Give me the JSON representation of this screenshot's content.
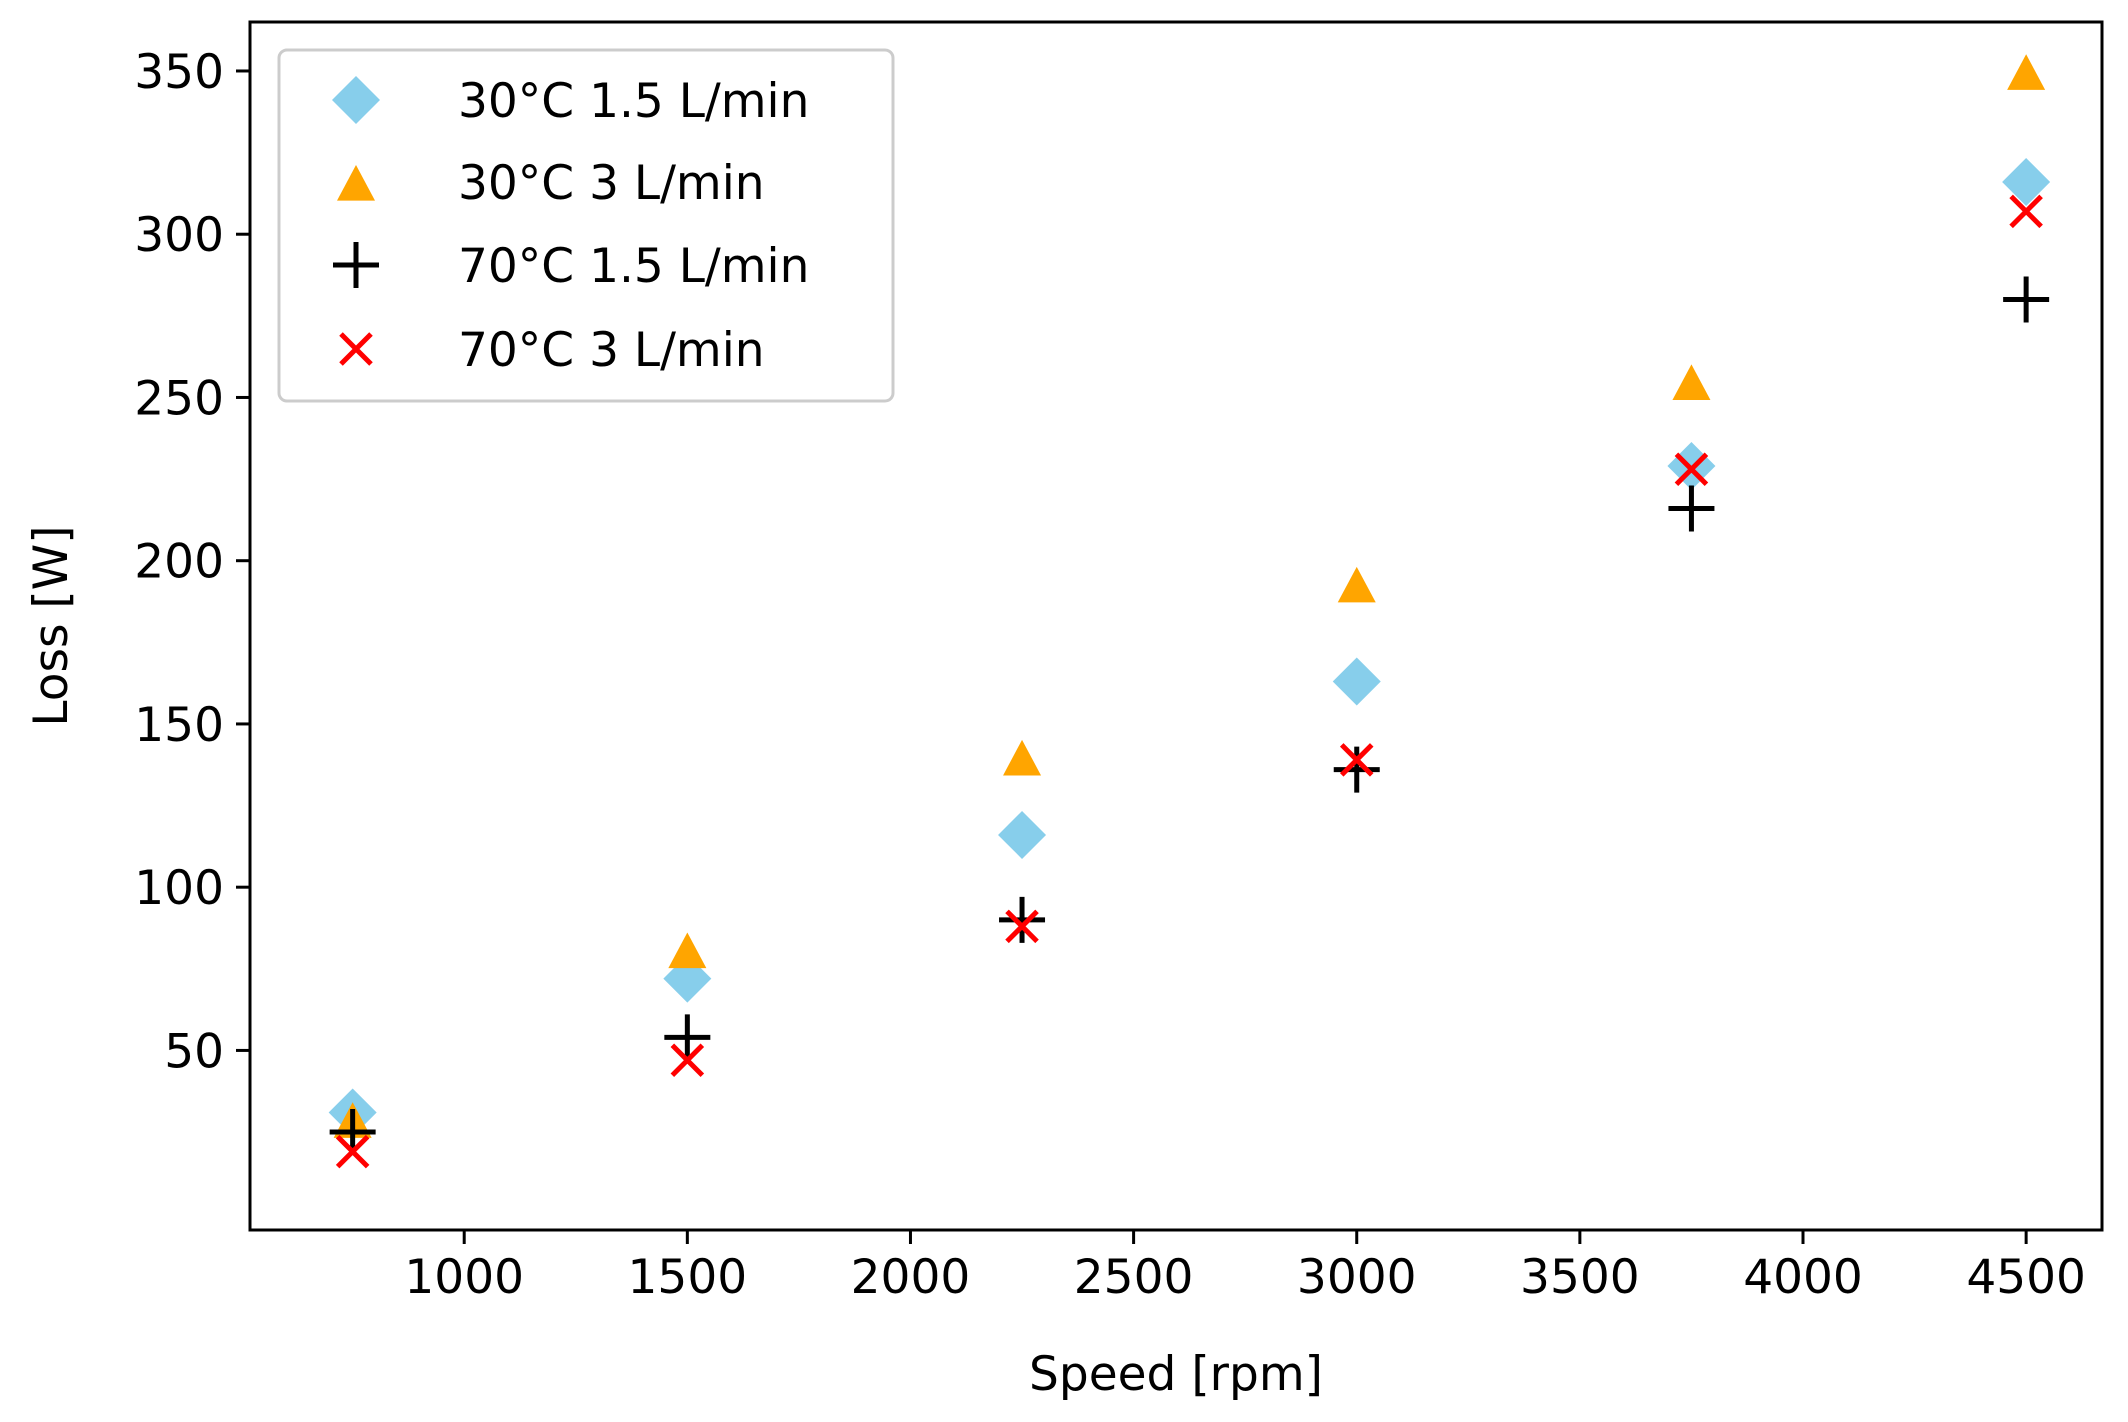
{
  "chart_data": {
    "type": "scatter",
    "title": "",
    "xlabel": "Speed [rpm]",
    "ylabel": "Loss [W]",
    "xlim": [
      520,
      4670
    ],
    "ylim": [
      -5,
      365
    ],
    "xticks": [
      1000,
      1500,
      2000,
      2500,
      3000,
      3500,
      4000,
      4500
    ],
    "yticks": [
      50,
      100,
      150,
      200,
      250,
      300,
      350
    ],
    "grid": false,
    "legend_position": "upper-left",
    "series": [
      {
        "name": "30°C 1.5 L/min",
        "marker": "diamond",
        "color": "#87CEEB",
        "x": [
          750,
          1500,
          2250,
          3000,
          3750,
          4500
        ],
        "y": [
          31,
          72,
          116,
          163,
          229,
          316
        ]
      },
      {
        "name": "30°C 3 L/min",
        "marker": "triangle",
        "color": "#FFA500",
        "x": [
          750,
          1500,
          2250,
          3000,
          3750,
          4500
        ],
        "y": [
          28,
          80,
          139,
          192,
          254,
          349
        ]
      },
      {
        "name": "70°C 1.5 L/min",
        "marker": "plus",
        "color": "#000000",
        "x": [
          750,
          1500,
          2250,
          3000,
          3750,
          4500
        ],
        "y": [
          25,
          54,
          90,
          136,
          216,
          280
        ]
      },
      {
        "name": "70°C 3 L/min",
        "marker": "x",
        "color": "#FF0000",
        "x": [
          750,
          1500,
          2250,
          3000,
          3750,
          4500
        ],
        "y": [
          19,
          47,
          88,
          139,
          228,
          307
        ]
      }
    ]
  }
}
